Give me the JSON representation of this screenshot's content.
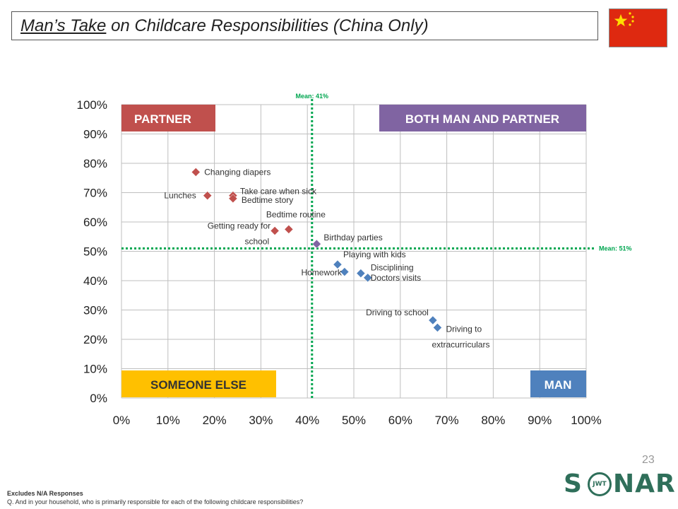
{
  "title": {
    "underlined": "Man’s Take",
    "rest": " on Childcare Responsibilities (China Only)"
  },
  "page_number": "23",
  "footer": {
    "note": "Excludes N/A Responses",
    "question": "Q. And in your household, who is primarily responsible for each of the following childcare responsibilities?"
  },
  "logo": {
    "text_left": "S",
    "text_right": "NAR",
    "inner": "JWT"
  },
  "colors": {
    "partner": "#c0504d",
    "both": "#8064a2",
    "someone_else": "#ffc000",
    "man": "#4f81bd",
    "mean_line": "#00a650",
    "diamond_red": "#c0504d",
    "diamond_purple": "#8064a2",
    "diamond_blue": "#4f81bd",
    "flag_red": "#de2910",
    "flag_star": "#ffde00"
  },
  "icons": {
    "flag": "china-flag-icon"
  },
  "chart_data": {
    "type": "scatter",
    "xlim": [
      0,
      100
    ],
    "ylim": [
      0,
      100
    ],
    "x_ticks": [
      "0%",
      "10%",
      "20%",
      "30%",
      "40%",
      "50%",
      "60%",
      "70%",
      "80%",
      "90%",
      "100%"
    ],
    "y_ticks": [
      "0%",
      "10%",
      "20%",
      "30%",
      "40%",
      "50%",
      "60%",
      "70%",
      "80%",
      "90%",
      "100%"
    ],
    "grid": true,
    "mean_x": {
      "value": 41,
      "label": "Mean: 41%"
    },
    "mean_y": {
      "value": 51,
      "label": "Mean: 51%"
    },
    "quadrants": {
      "top_left": "PARTNER",
      "top_right": "BOTH MAN AND PARTNER",
      "bottom_left": "SOMEONE ELSE",
      "bottom_right": "MAN"
    },
    "points": [
      {
        "label": "Changing diapers",
        "x": 16,
        "y": 77,
        "group": "partner"
      },
      {
        "label": "Lunches",
        "x": 18.5,
        "y": 69,
        "group": "partner"
      },
      {
        "label": "Take care when sick",
        "x": 24,
        "y": 69,
        "group": "partner"
      },
      {
        "label": "Bedtime story",
        "x": 24,
        "y": 68,
        "group": "partner"
      },
      {
        "label": "Getting ready for school",
        "x": 33,
        "y": 57,
        "group": "partner"
      },
      {
        "label": "Bedtime routine",
        "x": 36,
        "y": 57.5,
        "group": "partner"
      },
      {
        "label": "Birthday parties",
        "x": 42,
        "y": 52.5,
        "group": "both"
      },
      {
        "label": "Playing with kids",
        "x": 46.5,
        "y": 45.5,
        "group": "man"
      },
      {
        "label": "Homework",
        "x": 48,
        "y": 43,
        "group": "man"
      },
      {
        "label": "Disciplining",
        "x": 51.5,
        "y": 42.5,
        "group": "man"
      },
      {
        "label": "Doctors visits",
        "x": 53,
        "y": 41,
        "group": "man"
      },
      {
        "label": "Driving to school",
        "x": 67,
        "y": 26.5,
        "group": "man"
      },
      {
        "label": "Driving to extracurriculars",
        "x": 68,
        "y": 24,
        "group": "man"
      }
    ]
  }
}
